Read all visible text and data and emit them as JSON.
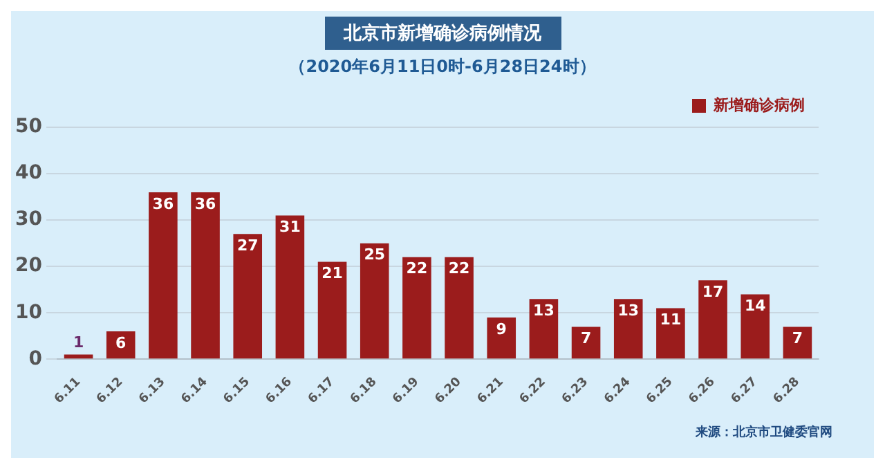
{
  "chart_data": {
    "type": "bar",
    "title": "北京市新增确诊病例情况",
    "subtitle": "（2020年6月11日0时-6月28日24时）",
    "categories": [
      "6.11",
      "6.12",
      "6.13",
      "6.14",
      "6.15",
      "6.16",
      "6.17",
      "6.18",
      "6.19",
      "6.20",
      "6.21",
      "6.22",
      "6.23",
      "6.24",
      "6.25",
      "6.26",
      "6.27",
      "6.28"
    ],
    "series": [
      {
        "name": "新增确诊病例",
        "color": "#9b1c1c",
        "values": [
          1,
          6,
          36,
          36,
          27,
          31,
          21,
          25,
          22,
          22,
          9,
          13,
          7,
          13,
          11,
          17,
          14,
          7
        ]
      }
    ],
    "ylim": [
      0,
      50
    ],
    "yticks": [
      0,
      10,
      20,
      30,
      40,
      50
    ],
    "grid": "y",
    "legend": "top right",
    "data_labels": true,
    "annotations": [
      "来源：北京市卫健委官网"
    ]
  }
}
